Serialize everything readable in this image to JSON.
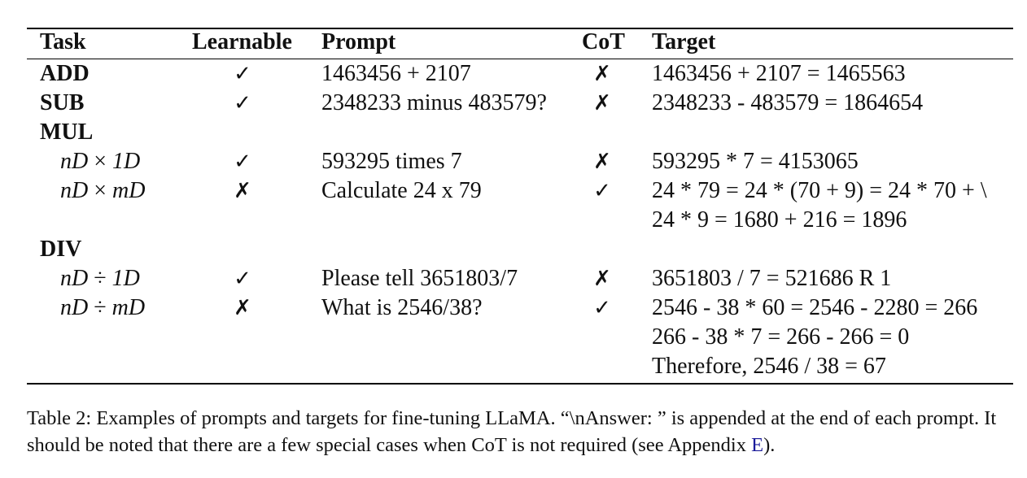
{
  "table": {
    "headers": {
      "task": "Task",
      "learnable": "Learnable",
      "prompt": "Prompt",
      "cot": "CoT",
      "target": "Target"
    },
    "marks": {
      "check": "✓",
      "cross": "✗"
    },
    "rows": [
      {
        "task": "ADD",
        "learnable": "check",
        "prompt": "1463456 + 2107",
        "cot": "cross",
        "target": [
          "1463456 + 2107 = 1465563"
        ]
      },
      {
        "task": "SUB",
        "learnable": "check",
        "prompt": "2348233 minus 483579?",
        "cot": "cross",
        "target": [
          "2348233 - 483579 = 1864654"
        ]
      },
      {
        "task": "MUL"
      },
      {
        "task_math": {
          "a": "nD",
          "op": "×",
          "b": "1D"
        },
        "learnable": "check",
        "prompt": "593295 times 7",
        "cot": "cross",
        "target": [
          "593295 * 7 = 4153065"
        ]
      },
      {
        "task_math": {
          "a": "nD",
          "op": "×",
          "b": "mD"
        },
        "learnable": "cross",
        "prompt": "Calculate 24 x 79",
        "cot": "check",
        "target": [
          "24 * 79 = 24 * (70 + 9) = 24 * 70 + \\",
          "24 * 9 = 1680 + 216 = 1896"
        ]
      },
      {
        "task": "DIV"
      },
      {
        "task_math": {
          "a": "nD",
          "op": "÷",
          "b": "1D"
        },
        "learnable": "check",
        "prompt": "Please tell 3651803/7",
        "cot": "cross",
        "target": [
          "3651803 / 7 = 521686 R 1"
        ]
      },
      {
        "task_math": {
          "a": "nD",
          "op": "÷",
          "b": "mD"
        },
        "learnable": "cross",
        "prompt": "What is 2546/38?",
        "cot": "check",
        "target": [
          "2546 - 38 * 60 = 2546 - 2280 = 266",
          "266 - 38 * 7 = 266 - 266 = 0",
          "Therefore, 2546 / 38 = 67"
        ]
      }
    ]
  },
  "caption": {
    "before_link": "Table 2:  Examples of prompts and targets for fine-tuning LLaMA. “\\nAnswer: ” is appended at the end of each prompt. It should be noted that there are a few special cases when CoT is not required (see Appendix ",
    "link": "E",
    "after_link": ")."
  }
}
